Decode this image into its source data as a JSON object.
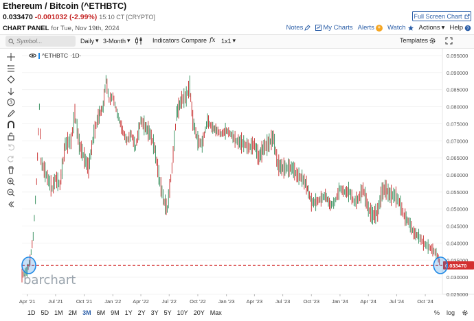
{
  "header": {
    "title": "Ethereum / Bitcoin (^ETHBTC)",
    "last_price": "0.033470",
    "change": "-0.001032 (-2.99%)",
    "time": "15:10 CT [CRYPTO]",
    "fullscreen_label": "Full Screen Chart"
  },
  "panel": {
    "label": "CHART PANEL",
    "date": "for Tue, Nov 19th, 2024"
  },
  "links": {
    "notes": "Notes",
    "my_charts": "My Charts",
    "alerts": "Alerts",
    "alerts_count": "+",
    "watch": "Watch",
    "actions": "Actions",
    "help": "Help"
  },
  "toolbar": {
    "search_placeholder": "Symbol...",
    "interval": "Daily",
    "period": "3-Month",
    "indicators": "Indicators",
    "compare": "Compare",
    "fx": "fx",
    "ratio": "1x1",
    "templates": "Templates"
  },
  "legend": {
    "symbol": "^ETHBTC",
    "interval": "·1D·"
  },
  "watermark": "barchart",
  "colors": {
    "up": "#2e8b57",
    "down": "#c62828",
    "accent": "#2c5fa8",
    "price_line": "#d32f2f",
    "highlight": "#1e88e5"
  },
  "price_tag": "0.033470",
  "y_axis_labels": [
    "0.095000",
    "0.090000",
    "0.085000",
    "0.080000",
    "0.075000",
    "0.070000",
    "0.065000",
    "0.060000",
    "0.055000",
    "0.050000",
    "0.045000",
    "0.040000",
    "0.035000",
    "0.030000",
    "0.025000"
  ],
  "x_axis_labels": [
    "Apr '21",
    "Jul '21",
    "Oct '21",
    "Jan '22",
    "Apr '22",
    "Jul '22",
    "Oct '22",
    "Jan '23",
    "Apr '23",
    "Jul '23",
    "Oct '23",
    "Jan '24",
    "Apr '24",
    "Jul '24",
    "Oct '24"
  ],
  "ranges": [
    "1D",
    "5D",
    "1M",
    "2M",
    "3M",
    "6M",
    "9M",
    "1Y",
    "2Y",
    "3Y",
    "5Y",
    "10Y",
    "20Y",
    "Max"
  ],
  "active_range": "3M",
  "bottom_right": {
    "percent": "%",
    "log": "log"
  },
  "side_tools": [
    "crosshair-icon",
    "lines-icon",
    "shapes-icon",
    "arrow-icon",
    "fib-icon",
    "pencil-icon",
    "magnet-icon",
    "lock-icon",
    "undo-icon",
    "redo-icon",
    "trash-icon",
    "zoom-in-icon",
    "zoom-out-icon",
    "collapse-icon"
  ],
  "chart_data": {
    "type": "line",
    "series": [
      {
        "name": "^ETHBTC",
        "x": [
          "2021-03-15",
          "2021-04-01",
          "2021-04-10",
          "2021-04-20",
          "2021-05-01",
          "2021-05-10",
          "2021-05-15",
          "2021-06-01",
          "2021-06-20",
          "2021-07-01",
          "2021-07-15",
          "2021-08-01",
          "2021-08-20",
          "2021-09-01",
          "2021-09-15",
          "2021-10-01",
          "2021-10-15",
          "2021-11-01",
          "2021-11-15",
          "2021-12-01",
          "2021-12-10",
          "2021-12-20",
          "2022-01-01",
          "2022-01-15",
          "2022-02-01",
          "2022-02-15",
          "2022-03-01",
          "2022-03-15",
          "2022-04-01",
          "2022-04-15",
          "2022-05-01",
          "2022-05-15",
          "2022-06-01",
          "2022-06-15",
          "2022-06-25",
          "2022-07-10",
          "2022-07-25",
          "2022-08-10",
          "2022-08-25",
          "2022-09-05",
          "2022-09-15",
          "2022-10-01",
          "2022-10-15",
          "2022-11-01",
          "2022-11-15",
          "2022-12-01",
          "2022-12-15",
          "2023-01-01",
          "2023-01-15",
          "2023-02-01",
          "2023-03-01",
          "2023-03-15",
          "2023-04-01",
          "2023-04-15",
          "2023-05-01",
          "2023-05-15",
          "2023-06-01",
          "2023-06-15",
          "2023-07-01",
          "2023-07-15",
          "2023-08-01",
          "2023-08-15",
          "2023-09-01",
          "2023-09-15",
          "2023-10-01",
          "2023-10-15",
          "2023-11-01",
          "2023-11-15",
          "2023-12-01",
          "2023-12-15",
          "2024-01-01",
          "2024-01-15",
          "2024-02-01",
          "2024-02-15",
          "2024-03-01",
          "2024-03-15",
          "2024-04-01",
          "2024-04-15",
          "2024-05-01",
          "2024-05-15",
          "2024-05-25",
          "2024-06-10",
          "2024-06-25",
          "2024-07-10",
          "2024-07-25",
          "2024-08-10",
          "2024-08-25",
          "2024-09-10",
          "2024-09-25",
          "2024-10-10",
          "2024-10-25",
          "2024-11-05",
          "2024-11-12",
          "2024-11-19"
        ],
        "values": [
          0.0305,
          0.032,
          0.035,
          0.042,
          0.058,
          0.08,
          0.064,
          0.06,
          0.056,
          0.059,
          0.057,
          0.069,
          0.07,
          0.078,
          0.069,
          0.065,
          0.062,
          0.072,
          0.077,
          0.08,
          0.088,
          0.082,
          0.083,
          0.078,
          0.073,
          0.07,
          0.072,
          0.068,
          0.076,
          0.074,
          0.072,
          0.068,
          0.058,
          0.052,
          0.05,
          0.062,
          0.078,
          0.082,
          0.083,
          0.086,
          0.076,
          0.07,
          0.069,
          0.076,
          0.074,
          0.073,
          0.072,
          0.073,
          0.072,
          0.07,
          0.069,
          0.068,
          0.069,
          0.065,
          0.068,
          0.069,
          0.071,
          0.063,
          0.062,
          0.062,
          0.062,
          0.06,
          0.059,
          0.057,
          0.052,
          0.052,
          0.053,
          0.054,
          0.051,
          0.052,
          0.056,
          0.055,
          0.055,
          0.052,
          0.053,
          0.056,
          0.05,
          0.048,
          0.049,
          0.055,
          0.056,
          0.054,
          0.054,
          0.052,
          0.048,
          0.046,
          0.043,
          0.042,
          0.04,
          0.039,
          0.038,
          0.037,
          0.0355,
          0.03347
        ]
      }
    ],
    "xlabel": "",
    "ylabel": "",
    "ylim": [
      0.025,
      0.097
    ],
    "xlim": [
      "2021-03-15",
      "2024-11-25"
    ],
    "grid": true,
    "current_value": 0.03347
  }
}
